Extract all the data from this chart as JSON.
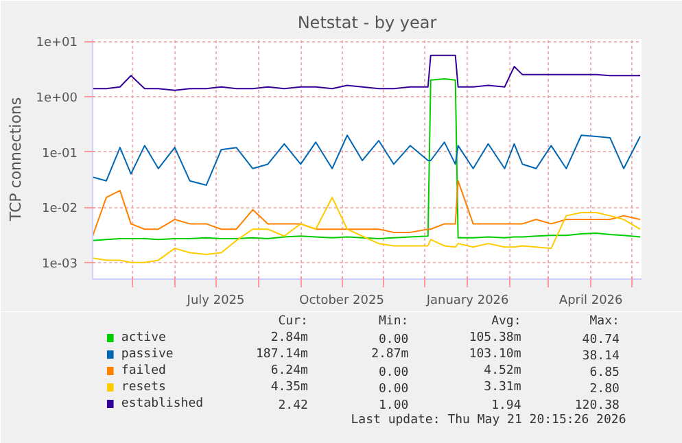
{
  "chart_data": {
    "type": "line",
    "title": "Netstat - by year",
    "ylabel": "TCP connections",
    "log": "y",
    "grid": true,
    "legend": "bottom",
    "line_style": "solid",
    "marker": "none",
    "x": [
      "2025-04-02",
      "2025-04-12",
      "2025-04-22",
      "2025-04-30",
      "2025-05-10",
      "2025-05-20",
      "2025-06-01",
      "2025-06-12",
      "2025-06-24",
      "2025-07-05",
      "2025-07-16",
      "2025-07-28",
      "2025-08-08",
      "2025-08-20",
      "2025-09-01",
      "2025-09-12",
      "2025-09-24",
      "2025-10-05",
      "2025-10-16",
      "2025-10-28",
      "2025-11-08",
      "2025-11-20",
      "2025-12-03",
      "2025-12-05",
      "2025-12-15",
      "2025-12-23",
      "2025-12-25",
      "2026-01-05",
      "2026-01-16",
      "2026-01-28",
      "2026-02-04",
      "2026-02-10",
      "2026-02-20",
      "2026-03-03",
      "2026-03-14",
      "2026-03-25",
      "2026-04-05",
      "2026-04-15",
      "2026-04-25",
      "2026-05-07"
    ],
    "xlim": [
      "2025-04-02",
      "2026-05-08"
    ],
    "xticks": [
      {
        "value": "2025-05-01",
        "label": null
      },
      {
        "value": "2025-06-01",
        "label": null
      },
      {
        "value": "2025-07-01",
        "label": "July 2025"
      },
      {
        "value": "2025-08-01",
        "label": null
      },
      {
        "value": "2025-09-01",
        "label": null
      },
      {
        "value": "2025-10-01",
        "label": "October 2025"
      },
      {
        "value": "2025-11-01",
        "label": null
      },
      {
        "value": "2025-12-01",
        "label": null
      },
      {
        "value": "2026-01-01",
        "label": "January 2026"
      },
      {
        "value": "2026-02-01",
        "label": null
      },
      {
        "value": "2026-03-01",
        "label": null
      },
      {
        "value": "2026-04-01",
        "label": "April 2026"
      },
      {
        "value": "2026-05-01",
        "label": null
      }
    ],
    "ylim": [
      0.0005,
      11
    ],
    "yticks": [
      {
        "value": 0.001,
        "label": "1e-03"
      },
      {
        "value": 0.01,
        "label": "1e-02"
      },
      {
        "value": 0.1,
        "label": "1e-01"
      },
      {
        "value": 1,
        "label": "1e+00"
      },
      {
        "value": 10,
        "label": "1e+01"
      }
    ],
    "series": [
      {
        "name": "active",
        "color": "#00cc00",
        "values": [
          0.0025,
          0.0026,
          0.0027,
          0.0027,
          0.0027,
          0.0026,
          0.0027,
          0.0027,
          0.0028,
          0.0027,
          0.0027,
          0.0028,
          0.0027,
          0.0029,
          0.003,
          0.0029,
          0.0028,
          0.0029,
          0.0028,
          0.0027,
          0.0028,
          0.0029,
          0.003,
          2.0,
          2.1,
          2.0,
          0.0028,
          0.0028,
          0.0029,
          0.0028,
          0.0029,
          0.0029,
          0.003,
          0.0031,
          0.0031,
          0.0033,
          0.0034,
          0.0032,
          0.0031,
          0.0029
        ]
      },
      {
        "name": "passive",
        "color": "#0066b3",
        "values": [
          0.035,
          0.03,
          0.12,
          0.04,
          0.13,
          0.05,
          0.12,
          0.03,
          0.025,
          0.11,
          0.12,
          0.05,
          0.06,
          0.14,
          0.06,
          0.15,
          0.05,
          0.2,
          0.07,
          0.16,
          0.06,
          0.13,
          0.07,
          0.07,
          0.15,
          0.06,
          0.13,
          0.05,
          0.14,
          0.05,
          0.14,
          0.06,
          0.05,
          0.13,
          0.05,
          0.2,
          0.19,
          0.18,
          0.05,
          0.19
        ]
      },
      {
        "name": "failed",
        "color": "#ff8000",
        "values": [
          0.003,
          0.015,
          0.02,
          0.005,
          0.004,
          0.004,
          0.006,
          0.005,
          0.005,
          0.004,
          0.004,
          0.009,
          0.005,
          0.005,
          0.005,
          0.004,
          0.004,
          0.004,
          0.004,
          0.004,
          0.0035,
          0.0035,
          0.004,
          0.004,
          0.005,
          0.005,
          0.03,
          0.005,
          0.005,
          0.005,
          0.005,
          0.005,
          0.006,
          0.005,
          0.006,
          0.006,
          0.006,
          0.006,
          0.007,
          0.006
        ]
      },
      {
        "name": "resets",
        "color": "#ffcc00",
        "values": [
          0.0012,
          0.0011,
          0.0011,
          0.001,
          0.001,
          0.0011,
          0.0018,
          0.0015,
          0.0014,
          0.0015,
          0.0025,
          0.004,
          0.004,
          0.003,
          0.005,
          0.004,
          0.015,
          0.004,
          0.003,
          0.0022,
          0.002,
          0.002,
          0.002,
          0.0026,
          0.002,
          0.0019,
          0.0022,
          0.0019,
          0.0022,
          0.0019,
          0.0019,
          0.002,
          0.0019,
          0.0018,
          0.007,
          0.008,
          0.008,
          0.007,
          0.006,
          0.004
        ]
      },
      {
        "name": "established",
        "color": "#330099",
        "values": [
          1.4,
          1.4,
          1.5,
          2.4,
          1.4,
          1.4,
          1.3,
          1.4,
          1.4,
          1.5,
          1.4,
          1.4,
          1.5,
          1.4,
          1.5,
          1.5,
          1.4,
          1.6,
          1.5,
          1.4,
          1.4,
          1.5,
          1.5,
          5.6,
          5.6,
          5.6,
          1.5,
          1.5,
          1.6,
          1.5,
          3.5,
          2.5,
          2.5,
          2.5,
          2.5,
          2.5,
          2.5,
          2.4,
          2.4,
          2.4
        ]
      }
    ],
    "annotations": [
      "Cur:",
      "Min:",
      "Avg:",
      "Max:",
      "2.84m",
      "0.00",
      "105.38m",
      "40.74",
      "187.14m",
      "2.87m",
      "103.10m",
      "38.14",
      "6.24m",
      "0.00",
      "4.52m",
      "6.85",
      "4.35m",
      "0.00",
      "3.31m",
      "2.80",
      "2.42",
      "1.00",
      "1.94",
      "120.38",
      "Last update: Thu May 21 20:15:26 2026"
    ]
  }
}
